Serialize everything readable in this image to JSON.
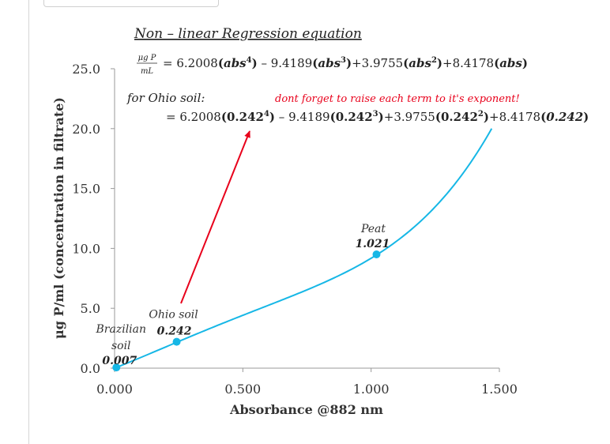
{
  "chart_data": {
    "type": "line",
    "title": "Non – linear Regression equation",
    "xlabel": "Absorbance @882 nm",
    "ylabel": "μg P/ml  (concentration in filtrate)",
    "xlim": [
      0,
      1.5
    ],
    "ylim": [
      0,
      25
    ],
    "x_ticks": [
      "0.000",
      "0.500",
      "1.000",
      "1.500"
    ],
    "y_ticks": [
      "0.0",
      "5.0",
      "10.0",
      "15.0",
      "20.0",
      "25.0"
    ],
    "line_color": "#16b7e6",
    "arrow_color": "#e8001b",
    "coefficients": [
      8.4178,
      3.9755,
      -9.4189,
      6.2008
    ],
    "curve_x_end": 1.47,
    "points": [
      {
        "name_lines": [
          "Brazilian",
          "soil"
        ],
        "label": "0.007",
        "x": 0.007,
        "y": 0.06
      },
      {
        "name_lines": [
          "Ohio soil"
        ],
        "label": "0.242",
        "x": 0.242,
        "y": 2.2
      },
      {
        "name_lines": [
          "Peat"
        ],
        "label": "1.021",
        "x": 1.021,
        "y": 9.5
      }
    ],
    "equation": {
      "lhs_num": "μg P",
      "lhs_den": "mL",
      "eq_sign": "=",
      "c4": "6.2008",
      "c3": "9.4189",
      "c2": "3.9755",
      "c1": "8.4178",
      "var": "abs",
      "ohio_label": "for Ohio soil:",
      "sub_val": "0.242"
    },
    "note": "dont forget to raise each term to it's exponent!"
  }
}
